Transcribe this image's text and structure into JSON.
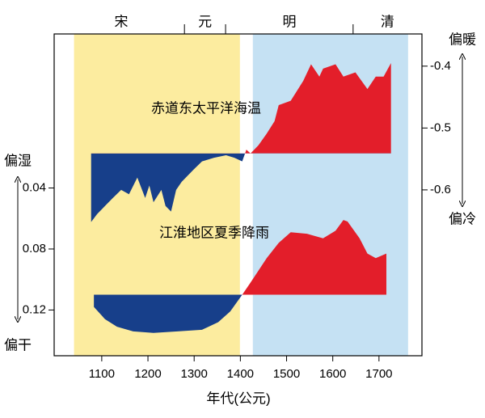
{
  "chart_data": {
    "type": "area",
    "xlabel": "年代(公元)",
    "xlim": [
      997,
      1793
    ],
    "xticks": [
      1100,
      1200,
      1300,
      1400,
      1500,
      1600,
      1700
    ],
    "ylim": [
      -0.061,
      0.15
    ],
    "y_inverted": true,
    "yticks": [
      0.04,
      0.08,
      0.12
    ],
    "y2lim": [
      -0.868,
      -0.348
    ],
    "y2ticks": [
      -0.4,
      -0.5,
      -0.6
    ],
    "y_top_label": "偏湿",
    "y_bottom_label": "偏干",
    "y2_top_label": "偏暖",
    "y2_bottom_label": "偏冷",
    "periods": [
      {
        "start": 1040,
        "end": 1399,
        "color": "#fcec9f"
      },
      {
        "start": 1427,
        "end": 1763,
        "color": "#c5e1f3"
      }
    ],
    "dynasties": [
      "宋",
      "元",
      "明",
      "清"
    ],
    "dynasty_bounds": [
      1279,
      1368,
      1644
    ],
    "series": [
      {
        "name": "赤道东太平洋海温",
        "axis": "y2",
        "baseline": -0.541,
        "above_color": "#e31e2a",
        "below_color": "#173f8a",
        "x": [
          1077,
          1090,
          1107,
          1124,
          1142,
          1159,
          1177,
          1194,
          1203,
          1212,
          1229,
          1238,
          1250,
          1261,
          1273,
          1299,
          1317,
          1343,
          1369,
          1387,
          1404,
          1413,
          1422,
          1439,
          1457,
          1474,
          1483,
          1509,
          1536,
          1553,
          1571,
          1579,
          1606,
          1623,
          1649,
          1675,
          1693,
          1710,
          1726
        ],
        "values": [
          -0.652,
          -0.639,
          -0.626,
          -0.613,
          -0.6,
          -0.607,
          -0.58,
          -0.613,
          -0.593,
          -0.62,
          -0.6,
          -0.626,
          -0.635,
          -0.6,
          -0.587,
          -0.567,
          -0.554,
          -0.548,
          -0.544,
          -0.548,
          -0.554,
          -0.535,
          -0.541,
          -0.528,
          -0.509,
          -0.489,
          -0.463,
          -0.456,
          -0.424,
          -0.397,
          -0.417,
          -0.404,
          -0.397,
          -0.417,
          -0.41,
          -0.437,
          -0.417,
          -0.417,
          -0.395
        ]
      },
      {
        "name": "江淮地区夏季降雨",
        "axis": "y",
        "baseline": 0.11,
        "above_color": "#e31e2a",
        "below_color": "#173f8a",
        "x": [
          1083,
          1107,
          1133,
          1168,
          1212,
          1264,
          1317,
          1352,
          1378,
          1404,
          1422,
          1457,
          1483,
          1509,
          1544,
          1579,
          1606,
          1623,
          1632,
          1658,
          1675,
          1693,
          1716
        ],
        "values": [
          0.118,
          0.126,
          0.131,
          0.134,
          0.135,
          0.134,
          0.133,
          0.128,
          0.121,
          0.11,
          0.102,
          0.086,
          0.076,
          0.069,
          0.07,
          0.073,
          0.068,
          0.061,
          0.062,
          0.073,
          0.083,
          0.086,
          0.083
        ]
      }
    ]
  }
}
